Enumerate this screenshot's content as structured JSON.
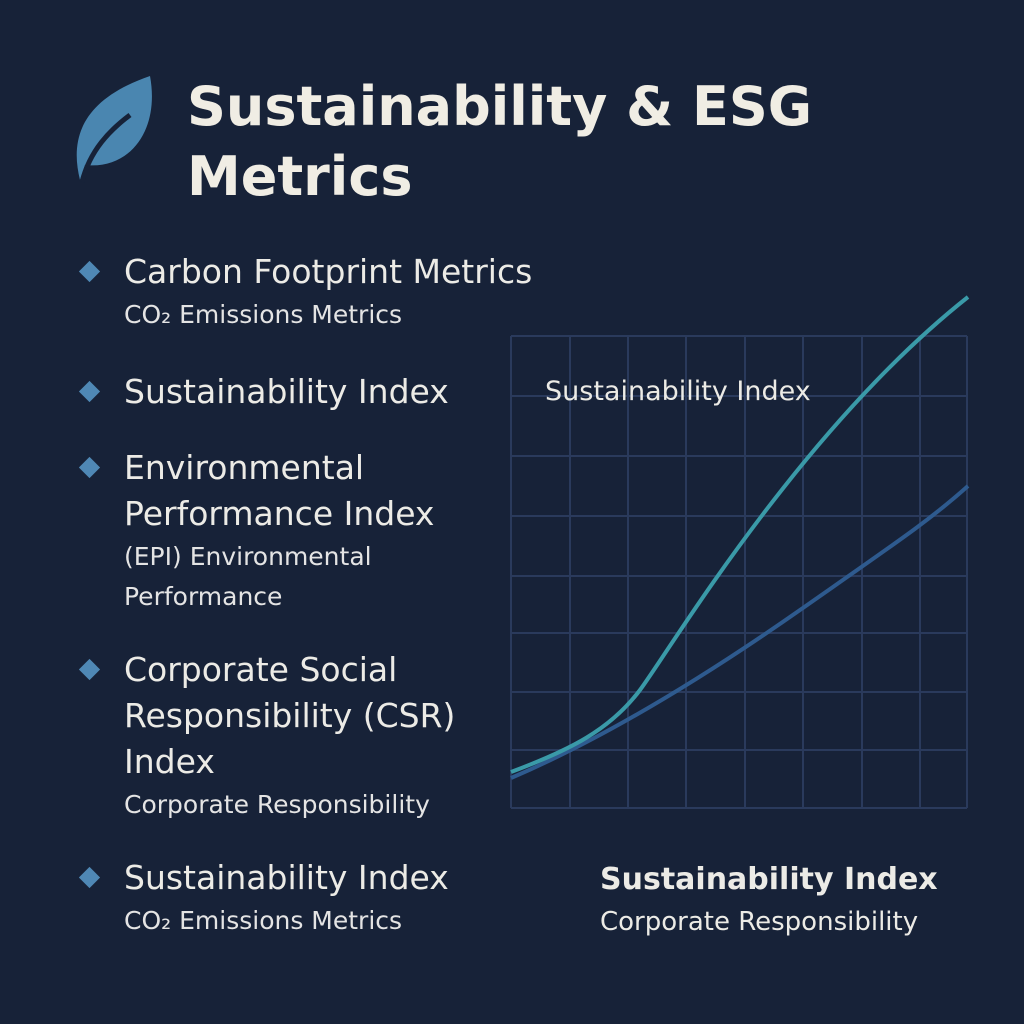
{
  "header": {
    "title": "Sustainability & ESG Metrics"
  },
  "items": [
    {
      "title": "Carbon Footprint Metrics",
      "subtitle": "CO₂ Emissions Metrics"
    },
    {
      "title": "Sustainability Index"
    },
    {
      "title": "Environmental Performance Index",
      "subtitle": "(EPI) Environmental Performance"
    },
    {
      "title": "Corporate Social Responsibility (CSR) Index",
      "subtitle": "Corporate Responsibility"
    },
    {
      "title": "Sustainability Index",
      "subtitle": "CO₂ Emissions Metrics"
    }
  ],
  "chart": {
    "label": "Sustainability Index",
    "caption_title": "Sustainability Index",
    "caption_subtitle": "Corporate Responsibility"
  }
}
